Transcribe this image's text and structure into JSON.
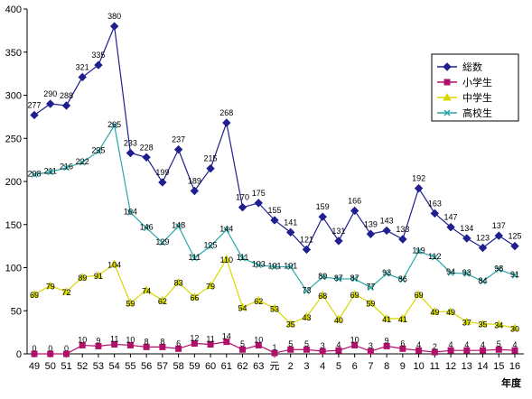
{
  "chart_data": {
    "type": "line",
    "categories": [
      "49",
      "50",
      "51",
      "52",
      "53",
      "54",
      "55",
      "56",
      "57",
      "58",
      "59",
      "60",
      "61",
      "62",
      "63",
      "元",
      "2",
      "3",
      "4",
      "5",
      "6",
      "7",
      "8",
      "9",
      "10",
      "11",
      "12",
      "13",
      "14",
      "15",
      "16"
    ],
    "xlabel": "年度",
    "ylim": [
      0,
      400
    ],
    "yticks": [
      0,
      50,
      100,
      150,
      200,
      250,
      300,
      350,
      400
    ],
    "grid": false,
    "legend_position": "top-right",
    "series": [
      {
        "name": "総数",
        "color": "#1f1f8f",
        "marker": "diamond",
        "values": [
          277,
          290,
          288,
          321,
          335,
          380,
          233,
          228,
          199,
          237,
          189,
          215,
          268,
          170,
          175,
          155,
          141,
          121,
          159,
          131,
          166,
          139,
          143,
          133,
          192,
          163,
          147,
          134,
          123,
          137,
          125
        ]
      },
      {
        "name": "小学生",
        "color": "#b0106a",
        "marker": "square",
        "values": [
          0,
          0,
          0,
          10,
          9,
          11,
          10,
          8,
          8,
          6,
          12,
          11,
          14,
          5,
          10,
          1,
          5,
          5,
          3,
          4,
          10,
          3,
          9,
          6,
          4,
          2,
          4,
          4,
          4,
          5,
          4
        ]
      },
      {
        "name": "中学生",
        "color": "#d8d800",
        "marker": "triangle",
        "values": [
          69,
          79,
          72,
          89,
          91,
          104,
          59,
          74,
          62,
          83,
          66,
          79,
          110,
          54,
          62,
          53,
          35,
          43,
          68,
          40,
          69,
          59,
          41,
          41,
          69,
          49,
          49,
          37,
          35,
          34,
          30
        ]
      },
      {
        "name": "高校生",
        "color": "#2aa6a6",
        "marker": "x",
        "values": [
          208,
          211,
          216,
          222,
          235,
          265,
          164,
          146,
          129,
          148,
          111,
          125,
          144,
          111,
          103,
          101,
          101,
          73,
          89,
          87,
          87,
          77,
          93,
          86,
          119,
          112,
          94,
          93,
          84,
          98,
          91
        ]
      }
    ],
    "data_labels": [
      [
        "277",
        "290",
        "288",
        "321",
        "335",
        "380",
        "233",
        "228",
        "199",
        "237",
        "189",
        "215",
        "268",
        "170",
        "175",
        "155",
        "141",
        "121",
        "159",
        "131",
        "166",
        "139",
        "143",
        "133",
        "192",
        "163",
        "147",
        "134",
        "123",
        "137",
        "125"
      ],
      [
        "0",
        "0",
        "0",
        "10",
        "9",
        "11",
        "10",
        "8",
        "8",
        "6",
        "12",
        "11",
        "14",
        "5",
        "10",
        "1",
        "5",
        "5",
        "3",
        "4",
        "10",
        "3",
        "9",
        "6",
        "4",
        "2",
        "4",
        "4",
        "4",
        "5",
        "4"
      ],
      [
        "69",
        "79",
        "72",
        "89",
        "91",
        "104",
        "59",
        "74",
        "62",
        "83",
        "66",
        "79",
        "110",
        "54",
        "62",
        "53",
        "35",
        "43",
        "68",
        "40",
        "69",
        "59",
        "41",
        "41",
        "69",
        "49",
        "49",
        "37",
        "35",
        "34",
        "30"
      ],
      [
        "208",
        "211",
        "216",
        "222",
        "235",
        "265",
        "164",
        "146",
        "129",
        "148",
        "111",
        "125",
        "144",
        "111",
        "103",
        "101",
        "101",
        "73",
        "89",
        "87",
        "87",
        "77",
        "93",
        "86",
        "119",
        "112",
        "94",
        "93",
        "84",
        "98",
        "91"
      ]
    ]
  }
}
